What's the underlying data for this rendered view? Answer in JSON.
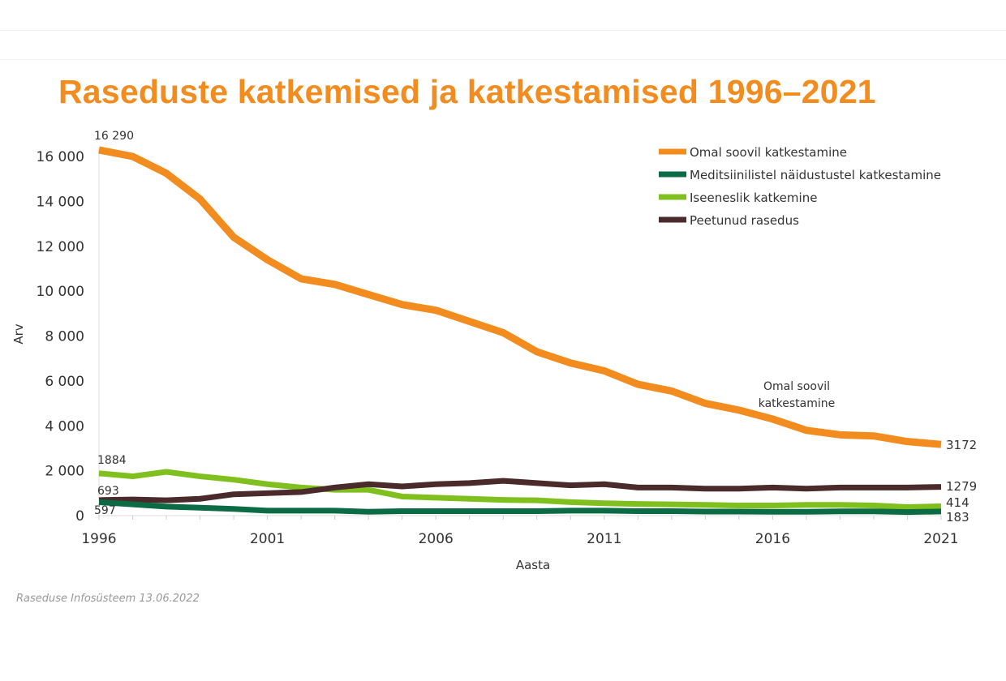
{
  "chart_data": {
    "type": "line",
    "title": "Raseduste katkemised ja katkestamised 1996–2021",
    "xlabel": "Aasta",
    "ylabel": "Arv",
    "source": "Raseduse Infosüsteem 13.06.2022",
    "x": [
      1996,
      1997,
      1998,
      1999,
      2000,
      2001,
      2002,
      2003,
      2004,
      2005,
      2006,
      2007,
      2008,
      2009,
      2010,
      2011,
      2012,
      2013,
      2014,
      2015,
      2016,
      2017,
      2018,
      2019,
      2020,
      2021
    ],
    "xticks": [
      "1996",
      "2001",
      "2006",
      "2011",
      "2016",
      "2021"
    ],
    "yticks": [
      "0",
      "2 000",
      "4 000",
      "6 000",
      "8 000",
      "10 000",
      "12 000",
      "14 000",
      "16 000"
    ],
    "ylim": [
      0,
      16000
    ],
    "xlim": [
      1996,
      2021
    ],
    "grid": false,
    "legend_position": "top-right",
    "series": [
      {
        "name": "Omal soovil  katkestamine",
        "color": "#f28c1e",
        "values": [
          16290,
          16000,
          15250,
          14100,
          12400,
          11400,
          10550,
          10300,
          9850,
          9400,
          9150,
          8650,
          8150,
          7300,
          6800,
          6450,
          5850,
          5550,
          5000,
          4700,
          4300,
          3800,
          3600,
          3550,
          3300,
          3172
        ],
        "start_label": "16 290",
        "end_label": "3172"
      },
      {
        "name": "Meditsiinilistel näidustustel katkestamine",
        "color": "#0b6b45",
        "values": [
          597,
          500,
          400,
          350,
          300,
          220,
          220,
          220,
          170,
          200,
          200,
          200,
          200,
          200,
          220,
          220,
          200,
          200,
          180,
          180,
          170,
          170,
          190,
          190,
          160,
          183
        ],
        "start_label": "597",
        "end_label": "183"
      },
      {
        "name": "Iseeneslik katkemine",
        "color": "#7fbf1e",
        "values": [
          1884,
          1750,
          1950,
          1750,
          1600,
          1400,
          1250,
          1150,
          1150,
          850,
          800,
          750,
          700,
          680,
          600,
          550,
          520,
          500,
          480,
          450,
          450,
          480,
          480,
          450,
          380,
          414
        ],
        "start_label": "1884",
        "end_label": "414"
      },
      {
        "name": "Peetunud rasedus",
        "color": "#4a2a2a",
        "values": [
          693,
          720,
          680,
          750,
          950,
          1000,
          1050,
          1250,
          1400,
          1300,
          1400,
          1450,
          1550,
          1450,
          1350,
          1400,
          1250,
          1250,
          1200,
          1200,
          1250,
          1200,
          1250,
          1250,
          1250,
          1279
        ],
        "start_label": "693",
        "end_label": "1279"
      }
    ],
    "annotations": [
      {
        "text_line1": "Omal soovil",
        "text_line2": "katkestamine",
        "x": 2016,
        "y": 5000
      }
    ]
  }
}
